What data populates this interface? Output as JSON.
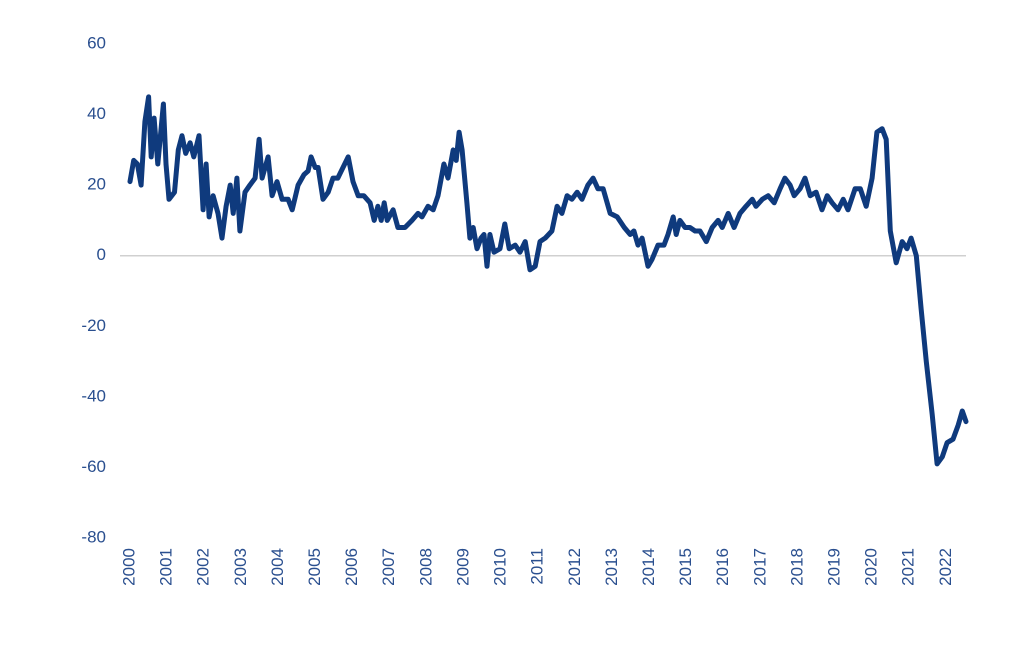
{
  "chart_data": {
    "type": "line",
    "x": [
      2000.0,
      2000.1,
      2000.2,
      2000.3,
      2000.4,
      2000.5,
      2000.57,
      2000.65,
      2000.75,
      2000.9,
      2000.97,
      2001.05,
      2001.2,
      2001.3,
      2001.4,
      2001.5,
      2001.62,
      2001.72,
      2001.86,
      2001.97,
      2002.05,
      2002.13,
      2002.24,
      2002.37,
      2002.48,
      2002.59,
      2002.7,
      2002.78,
      2002.88,
      2002.96,
      2003.1,
      2003.23,
      2003.37,
      2003.48,
      2003.56,
      2003.72,
      2003.83,
      2003.96,
      2004.1,
      2004.26,
      2004.37,
      2004.53,
      2004.69,
      2004.8,
      2004.88,
      2004.99,
      2005.07,
      2005.2,
      2005.34,
      2005.47,
      2005.6,
      2005.74,
      2005.88,
      2006.01,
      2006.15,
      2006.3,
      2006.47,
      2006.58,
      2006.68,
      2006.77,
      2006.85,
      2006.93,
      2007.09,
      2007.22,
      2007.41,
      2007.6,
      2007.76,
      2007.87,
      2008.03,
      2008.17,
      2008.3,
      2008.46,
      2008.57,
      2008.71,
      2008.79,
      2008.87,
      2008.95,
      2009.08,
      2009.16,
      2009.25,
      2009.35,
      2009.46,
      2009.54,
      2009.62,
      2009.7,
      2009.81,
      2009.97,
      2010.1,
      2010.22,
      2010.38,
      2010.51,
      2010.65,
      2010.78,
      2010.92,
      2011.05,
      2011.19,
      2011.37,
      2011.51,
      2011.64,
      2011.78,
      2011.91,
      2012.05,
      2012.18,
      2012.34,
      2012.48,
      2012.61,
      2012.75,
      2012.94,
      2013.13,
      2013.32,
      2013.48,
      2013.58,
      2013.69,
      2013.8,
      2013.96,
      2014.07,
      2014.23,
      2014.39,
      2014.5,
      2014.64,
      2014.72,
      2014.82,
      2014.96,
      2015.09,
      2015.23,
      2015.36,
      2015.53,
      2015.69,
      2015.85,
      2015.96,
      2016.12,
      2016.28,
      2016.44,
      2016.6,
      2016.77,
      2016.87,
      2017.04,
      2017.2,
      2017.36,
      2017.52,
      2017.65,
      2017.79,
      2017.9,
      2018.06,
      2018.19,
      2018.33,
      2018.49,
      2018.65,
      2018.79,
      2018.92,
      2019.08,
      2019.22,
      2019.35,
      2019.54,
      2019.68,
      2019.84,
      2020.0,
      2020.13,
      2020.27,
      2020.38,
      2020.49,
      2020.65,
      2020.81,
      2020.94,
      2021.05,
      2021.19,
      2021.32,
      2021.46,
      2021.62,
      2021.75,
      2021.89,
      2022.02,
      2022.18,
      2022.32,
      2022.43,
      2022.53
    ],
    "series": [
      {
        "color": "#0f3a7d",
        "values": [
          21,
          27,
          26,
          20,
          38,
          45,
          28,
          39,
          26,
          43,
          26,
          16,
          18,
          30,
          34,
          29,
          32,
          28,
          34,
          13,
          26,
          11,
          17,
          12,
          5,
          14,
          20,
          12,
          22,
          7,
          18,
          20,
          22,
          33,
          22,
          28,
          17,
          21,
          16,
          16,
          13,
          20,
          23,
          24,
          28,
          25,
          25,
          16,
          18,
          22,
          22,
          25,
          28,
          21,
          17,
          17,
          15,
          10,
          14,
          10,
          15,
          10,
          13,
          8,
          8,
          10,
          12,
          11,
          14,
          13,
          17,
          26,
          22,
          30,
          27,
          35,
          30,
          15,
          5,
          8,
          2,
          5,
          6,
          -3,
          6,
          1,
          2,
          9,
          2,
          3,
          1,
          4,
          -4,
          -3,
          4,
          5,
          7,
          14,
          12,
          17,
          16,
          18,
          16,
          20,
          22,
          19,
          19,
          12,
          11,
          8,
          6,
          7,
          3,
          5,
          -3,
          -1,
          3,
          3,
          6,
          11,
          6,
          10,
          8,
          8,
          7,
          7,
          4,
          8,
          10,
          8,
          12,
          8,
          12,
          14,
          16,
          14,
          16,
          17,
          15,
          19,
          22,
          20,
          17,
          19,
          22,
          17,
          18,
          13,
          17,
          15,
          13,
          16,
          13,
          19,
          19,
          14,
          22,
          35,
          36,
          33,
          7,
          -2,
          4,
          2,
          5,
          0,
          -15,
          -30,
          -45,
          -59,
          -57,
          -53,
          -52,
          -48,
          -44,
          -47
        ]
      }
    ],
    "xlim": [
      1999.73,
      2022.53
    ],
    "xticks": [
      2000,
      2001,
      2002,
      2003,
      2004,
      2005,
      2006,
      2007,
      2008,
      2009,
      2010,
      2011,
      2012,
      2013,
      2014,
      2015,
      2016,
      2017,
      2018,
      2019,
      2020,
      2021,
      2022
    ],
    "ylim": [
      -80,
      60
    ],
    "yticks": [
      -80,
      -60,
      -40,
      -20,
      0,
      20,
      40,
      60
    ]
  }
}
